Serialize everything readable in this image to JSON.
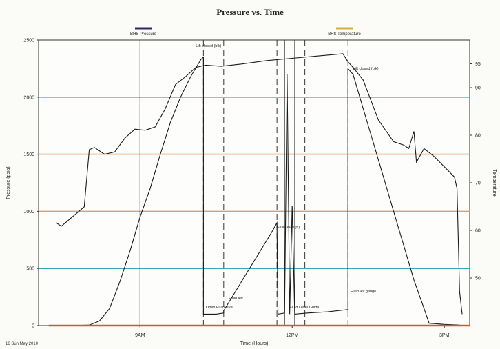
{
  "chart_data": {
    "type": "line",
    "title": "Pressure vs. Time",
    "xlabel": "Time (Hours)",
    "ylabel_left": "Pressure (psia)",
    "ylabel_right": "Temperature",
    "footer_date": "16 Sun May 2010",
    "xlim": [
      7,
      15.5
    ],
    "ylim_left": [
      0,
      2500
    ],
    "ylim_right": [
      40,
      100
    ],
    "x_ticks": [
      {
        "value": 9,
        "label": "9AM"
      },
      {
        "value": 12,
        "label": "12PM"
      },
      {
        "value": 15,
        "label": "3PM"
      }
    ],
    "y_ticks_left": [
      {
        "value": 0,
        "label": "0"
      },
      {
        "value": 500,
        "label": "500"
      },
      {
        "value": 1000,
        "label": "1000"
      },
      {
        "value": 1500,
        "label": "1500"
      },
      {
        "value": 2000,
        "label": "2000"
      },
      {
        "value": 2500,
        "label": "2500"
      }
    ],
    "y_ticks_right": [
      {
        "value": 50,
        "label": "50"
      },
      {
        "value": 60,
        "label": "60"
      },
      {
        "value": 70,
        "label": "70"
      },
      {
        "value": 80,
        "label": "80"
      },
      {
        "value": 90,
        "label": "90"
      },
      {
        "value": 95,
        "label": "95"
      }
    ],
    "gridlines_left": [
      {
        "value": 500,
        "color": "#3aa8b8"
      },
      {
        "value": 1000,
        "color": "#d8a070"
      },
      {
        "value": 1500,
        "color": "#d8a070"
      },
      {
        "value": 2000,
        "color": "#3aa8b8"
      }
    ],
    "legend": [
      {
        "label": "BHS Pressure",
        "color": "#2a2a6a"
      },
      {
        "label": "BHS Temperature",
        "color": "#d4b13a"
      }
    ],
    "vlines": [
      {
        "x": 9,
        "style": "solid"
      },
      {
        "x": 10.25,
        "style": "dashed"
      },
      {
        "x": 10.65,
        "style": "dashed"
      },
      {
        "x": 11.7,
        "style": "dashed"
      },
      {
        "x": 11.85,
        "style": "solid"
      },
      {
        "x": 12.05,
        "style": "solid"
      },
      {
        "x": 12.25,
        "style": "dashed"
      },
      {
        "x": 13.1,
        "style": "dashed"
      }
    ],
    "series": [
      {
        "name": "BHS Pressure",
        "axis": "left",
        "color": "#1a1a1a",
        "points": [
          [
            7.5,
            0
          ],
          [
            7.8,
            2
          ],
          [
            8.0,
            5
          ],
          [
            8.2,
            40
          ],
          [
            8.4,
            150
          ],
          [
            8.6,
            380
          ],
          [
            8.8,
            650
          ],
          [
            9.0,
            950
          ],
          [
            9.2,
            1200
          ],
          [
            9.4,
            1500
          ],
          [
            9.6,
            1780
          ],
          [
            9.8,
            2000
          ],
          [
            10.0,
            2180
          ],
          [
            10.2,
            2330
          ],
          [
            10.25,
            2350
          ],
          [
            10.25,
            100
          ],
          [
            10.5,
            100
          ],
          [
            10.65,
            110
          ],
          [
            10.65,
            130
          ],
          [
            11.6,
            820
          ],
          [
            11.7,
            900
          ],
          [
            11.72,
            100
          ],
          [
            11.85,
            110
          ],
          [
            11.9,
            2200
          ],
          [
            11.95,
            100
          ],
          [
            12.0,
            1050
          ],
          [
            12.05,
            100
          ],
          [
            12.3,
            110
          ],
          [
            12.7,
            120
          ],
          [
            13.1,
            140
          ],
          [
            13.1,
            2250
          ],
          [
            13.2,
            2200
          ],
          [
            13.4,
            1900
          ],
          [
            13.6,
            1600
          ],
          [
            13.8,
            1300
          ],
          [
            14.0,
            1000
          ],
          [
            14.2,
            700
          ],
          [
            14.4,
            400
          ],
          [
            14.6,
            150
          ],
          [
            14.7,
            20
          ],
          [
            15.0,
            10
          ],
          [
            15.3,
            5
          ]
        ]
      },
      {
        "name": "BHS Temperature",
        "axis": "left",
        "color": "#1a1a1a",
        "points": [
          [
            7.35,
            900
          ],
          [
            7.45,
            870
          ],
          [
            7.9,
            1040
          ],
          [
            8.0,
            1540
          ],
          [
            8.1,
            1560
          ],
          [
            8.3,
            1500
          ],
          [
            8.5,
            1520
          ],
          [
            8.7,
            1640
          ],
          [
            8.9,
            1720
          ],
          [
            9.1,
            1710
          ],
          [
            9.3,
            1740
          ],
          [
            9.5,
            1900
          ],
          [
            9.7,
            2110
          ],
          [
            9.9,
            2180
          ],
          [
            10.1,
            2260
          ],
          [
            10.3,
            2280
          ],
          [
            10.6,
            2270
          ],
          [
            11.0,
            2290
          ],
          [
            11.5,
            2320
          ],
          [
            12.0,
            2340
          ],
          [
            12.5,
            2360
          ],
          [
            13.0,
            2380
          ],
          [
            13.1,
            2310
          ],
          [
            13.2,
            2260
          ],
          [
            13.4,
            2150
          ],
          [
            13.7,
            1800
          ],
          [
            14.0,
            1610
          ],
          [
            14.2,
            1580
          ],
          [
            14.3,
            1550
          ],
          [
            14.4,
            1700
          ],
          [
            14.45,
            1430
          ],
          [
            14.6,
            1550
          ],
          [
            14.8,
            1480
          ],
          [
            15.0,
            1390
          ],
          [
            15.2,
            1300
          ],
          [
            15.25,
            1200
          ],
          [
            15.3,
            300
          ],
          [
            15.35,
            100
          ]
        ]
      },
      {
        "name": "Ground",
        "axis": "left",
        "color": "#c8602a",
        "points": [
          [
            7.2,
            0
          ],
          [
            8.0,
            0
          ],
          [
            15.5,
            0
          ]
        ]
      }
    ],
    "annotations": [
      {
        "x": 10.1,
        "y": 2440,
        "text": "Lift closed (blk)"
      },
      {
        "x": 13.2,
        "y": 2240,
        "text": "Lift closed (blk)"
      },
      {
        "x": 11.7,
        "y": 850,
        "text": "Fluid level (ft)"
      },
      {
        "x": 10.3,
        "y": 150,
        "text": "Open Fluid level"
      },
      {
        "x": 10.75,
        "y": 230,
        "text": "Fluid lev"
      },
      {
        "x": 11.95,
        "y": 150,
        "text": "Fluid Level Guide"
      },
      {
        "x": 13.15,
        "y": 290,
        "text": "Fluid lev gauge"
      }
    ]
  }
}
